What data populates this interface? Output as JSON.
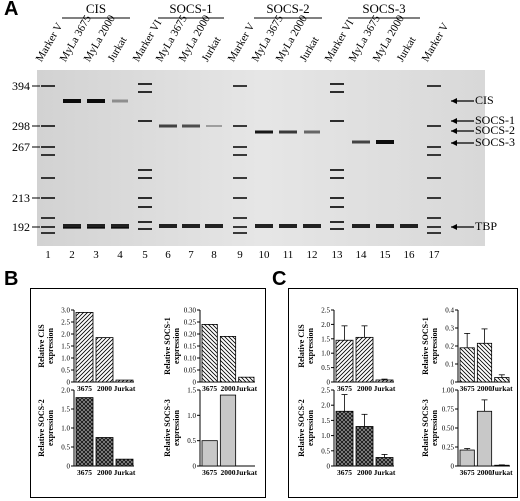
{
  "panels": {
    "a": "A",
    "b": "B",
    "c": "C"
  },
  "gel": {
    "groups": [
      "CIS",
      "SOCS-1",
      "SOCS-2",
      "SOCS-3"
    ],
    "lanes": [
      "Marker V",
      "MyLa 3675",
      "MyLa 2000",
      "Jurkat",
      "Marker VI",
      "MyLa 3675",
      "MyLa 2000",
      "Jurkat",
      "Marker V",
      "MyLa 3675",
      "MyLa 2000",
      "Jurkat",
      "Marker VI",
      "MyLa 3675",
      "MyLa 2000",
      "Jurkat",
      "Marker V"
    ],
    "lane_numbers": [
      "1",
      "2",
      "3",
      "4",
      "5",
      "6",
      "7",
      "8",
      "9",
      "10",
      "11",
      "12",
      "13",
      "14",
      "15",
      "16",
      "17"
    ],
    "mw_markers": [
      "394",
      "298",
      "267",
      "213",
      "192"
    ],
    "band_labels": [
      "CIS",
      "SOCS-1",
      "SOCS-2",
      "SOCS-3",
      "TBP"
    ]
  },
  "chart_data": [
    {
      "type": "bar",
      "panel": "B",
      "ylabel": "Relative CIS expression",
      "categories": [
        "3675",
        "2000",
        "Jurkat"
      ],
      "values": [
        2.9,
        1.85,
        0.08
      ],
      "ylim": [
        0,
        3.0
      ],
      "yticks": [
        "0",
        "0.5",
        "1.0",
        "1.5",
        "2.0",
        "2.5",
        "3.0"
      ],
      "pattern": "diag-right"
    },
    {
      "type": "bar",
      "panel": "B",
      "ylabel": "Relative SOCS-1 expression",
      "categories": [
        "3675",
        "2000",
        "Jurkat"
      ],
      "values": [
        0.24,
        0.19,
        0.02
      ],
      "ylim": [
        0,
        0.3
      ],
      "yticks": [
        "0",
        "0.05",
        "0.10",
        "0.15",
        "0.20",
        "0.25",
        "0.30"
      ],
      "pattern": "diag-left"
    },
    {
      "type": "bar",
      "panel": "B",
      "ylabel": "Relative SOCS-2 expression",
      "categories": [
        "3675",
        "2000",
        "Jurkat"
      ],
      "values": [
        1.8,
        0.75,
        0.18
      ],
      "ylim": [
        0,
        2.0
      ],
      "yticks": [
        "0",
        "0.5",
        "1.0",
        "1.5",
        "2.0"
      ],
      "pattern": "cross"
    },
    {
      "type": "bar",
      "panel": "B",
      "ylabel": "Relative SOCS-3 expression",
      "categories": [
        "3675",
        "2000",
        "Jurkat"
      ],
      "values": [
        0.5,
        1.4,
        0
      ],
      "ylim": [
        0,
        1.5
      ],
      "yticks": [
        "0",
        "0.5",
        "1.0",
        "1.5"
      ],
      "pattern": "grey"
    },
    {
      "type": "bar",
      "panel": "C",
      "ylabel": "Relative CIS expression",
      "categories": [
        "3675",
        "2000",
        "Jurkat"
      ],
      "values": [
        1.45,
        1.55,
        0.07
      ],
      "errors": [
        0.5,
        0.4,
        0.03
      ],
      "ylim": [
        0,
        2.5
      ],
      "yticks": [
        "0",
        "0.5",
        "1.0",
        "1.5",
        "2.0",
        "2.5"
      ],
      "pattern": "diag-right"
    },
    {
      "type": "bar",
      "panel": "C",
      "ylabel": "Relative SOCS-1 expression",
      "categories": [
        "3675",
        "2000",
        "Jurkat"
      ],
      "values": [
        0.19,
        0.215,
        0.025
      ],
      "errors": [
        0.08,
        0.08,
        0.015
      ],
      "ylim": [
        0,
        0.4
      ],
      "yticks": [
        "0",
        "0.1",
        "0.2",
        "0.3",
        "0.4"
      ],
      "pattern": "diag-left"
    },
    {
      "type": "bar",
      "panel": "C",
      "ylabel": "Relative SOCS-2 expression",
      "categories": [
        "3675",
        "2000",
        "Jurkat"
      ],
      "values": [
        1.8,
        1.3,
        0.28
      ],
      "errors": [
        0.55,
        0.4,
        0.1
      ],
      "ylim": [
        0,
        2.5
      ],
      "yticks": [
        "0",
        "0.5",
        "1.0",
        "1.5",
        "2.0",
        "2.5"
      ],
      "pattern": "cross"
    },
    {
      "type": "bar",
      "panel": "C",
      "ylabel": "Relative SOCS-3 expression",
      "categories": [
        "3675",
        "2000",
        "Jurkat"
      ],
      "values": [
        0.21,
        0.72,
        0.01
      ],
      "errors": [
        0.02,
        0.15,
        0.005
      ],
      "ylim": [
        0,
        1.0
      ],
      "yticks": [
        "0",
        "0.25",
        "0.50",
        "0.75",
        "1.00"
      ],
      "pattern": "grey"
    }
  ]
}
